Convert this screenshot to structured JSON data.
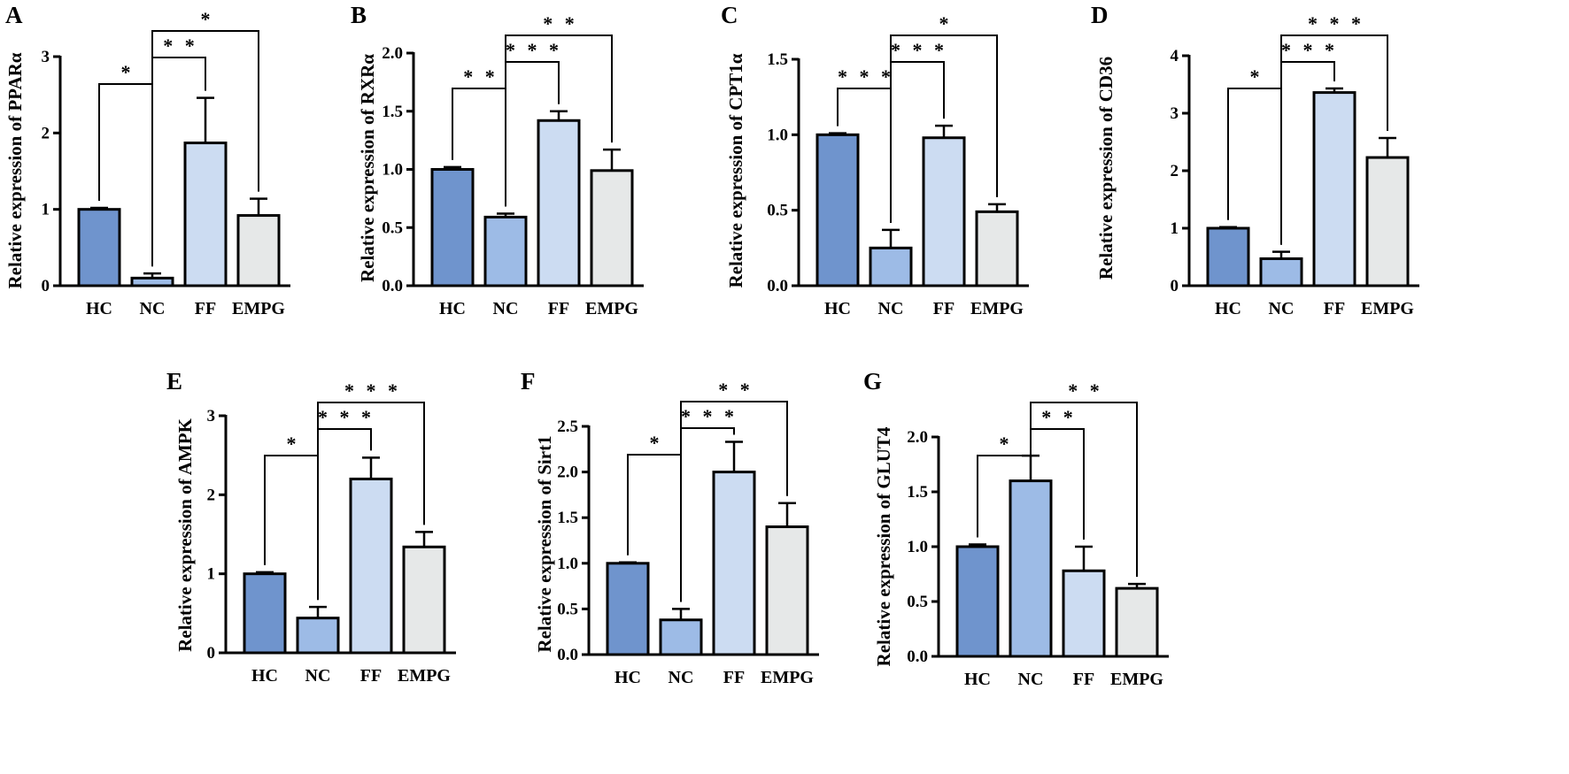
{
  "chart_data": [
    {
      "type": "bar",
      "panel_label": "A",
      "categories": [
        "HC",
        "NC",
        "FF",
        "EMPG"
      ],
      "values": [
        1.0,
        0.1,
        1.87,
        0.92
      ],
      "errors": [
        0.02,
        0.06,
        0.59,
        0.22
      ],
      "colors": [
        "#6f94cd",
        "#9dbbe6",
        "#ccdcf2",
        "#e6e8e8"
      ],
      "ylabel": "Relative expression of PPARα",
      "ylim": [
        0,
        3
      ],
      "yticks": [
        0,
        1,
        2,
        3
      ],
      "ytick_labels": [
        "0",
        "1",
        "2",
        "3"
      ],
      "significance": [
        {
          "from": 0,
          "to": 1,
          "label": "*"
        },
        {
          "from": 1,
          "to": 2,
          "label": "* *"
        },
        {
          "from": 1,
          "to": 3,
          "label": "*"
        }
      ]
    },
    {
      "type": "bar",
      "panel_label": "B",
      "categories": [
        "HC",
        "NC",
        "FF",
        "EMPG"
      ],
      "values": [
        1.0,
        0.59,
        1.42,
        0.99
      ],
      "errors": [
        0.02,
        0.03,
        0.08,
        0.18
      ],
      "colors": [
        "#6f94cd",
        "#9dbbe6",
        "#ccdcf2",
        "#e6e8e8"
      ],
      "ylabel": "Relative expression of RXRα",
      "ylim": [
        0,
        2
      ],
      "yticks": [
        0,
        0.5,
        1,
        1.5,
        2
      ],
      "ytick_labels": [
        "0.0",
        "0.5",
        "1.0",
        "1.5",
        "2.0"
      ],
      "significance": [
        {
          "from": 0,
          "to": 1,
          "label": "* *"
        },
        {
          "from": 1,
          "to": 2,
          "label": "* * *"
        },
        {
          "from": 1,
          "to": 3,
          "label": "* *"
        }
      ]
    },
    {
      "type": "bar",
      "panel_label": "C",
      "categories": [
        "HC",
        "NC",
        "FF",
        "EMPG"
      ],
      "values": [
        1.0,
        0.25,
        0.98,
        0.49
      ],
      "errors": [
        0.01,
        0.12,
        0.08,
        0.05
      ],
      "colors": [
        "#6f94cd",
        "#9dbbe6",
        "#ccdcf2",
        "#e6e8e8"
      ],
      "ylabel": "Relative expression of CPT1α",
      "ylim": [
        0,
        1.5
      ],
      "yticks": [
        0,
        0.5,
        1,
        1.5
      ],
      "ytick_labels": [
        "0.0",
        "0.5",
        "1.0",
        "1.5"
      ],
      "significance": [
        {
          "from": 0,
          "to": 1,
          "label": "* * *"
        },
        {
          "from": 1,
          "to": 2,
          "label": "* * *"
        },
        {
          "from": 1,
          "to": 3,
          "label": "*"
        }
      ]
    },
    {
      "type": "bar",
      "panel_label": "D",
      "categories": [
        "HC",
        "NC",
        "FF",
        "EMPG"
      ],
      "values": [
        1.0,
        0.47,
        3.36,
        2.23
      ],
      "errors": [
        0.02,
        0.12,
        0.07,
        0.34
      ],
      "colors": [
        "#6f94cd",
        "#9dbbe6",
        "#ccdcf2",
        "#e6e8e8"
      ],
      "ylabel": "Relative expression of CD36",
      "ylim": [
        0,
        4
      ],
      "yticks": [
        0,
        1,
        2,
        3,
        4
      ],
      "ytick_labels": [
        "0",
        "1",
        "2",
        "3",
        "4"
      ],
      "significance": [
        {
          "from": 0,
          "to": 1,
          "label": "*"
        },
        {
          "from": 1,
          "to": 2,
          "label": "* * *"
        },
        {
          "from": 1,
          "to": 3,
          "label": "* * *"
        }
      ]
    },
    {
      "type": "bar",
      "panel_label": "E",
      "categories": [
        "HC",
        "NC",
        "FF",
        "EMPG"
      ],
      "values": [
        1.0,
        0.44,
        2.2,
        1.34
      ],
      "errors": [
        0.02,
        0.14,
        0.27,
        0.19
      ],
      "colors": [
        "#6f94cd",
        "#9dbbe6",
        "#ccdcf2",
        "#e6e8e8"
      ],
      "ylabel": "Relative expression of AMPK",
      "ylim": [
        0,
        3
      ],
      "yticks": [
        0,
        1,
        2,
        3
      ],
      "ytick_labels": [
        "0",
        "1",
        "2",
        "3"
      ],
      "significance": [
        {
          "from": 0,
          "to": 1,
          "label": "*"
        },
        {
          "from": 1,
          "to": 2,
          "label": "* * *"
        },
        {
          "from": 1,
          "to": 3,
          "label": "* * *"
        }
      ]
    },
    {
      "type": "bar",
      "panel_label": "F",
      "categories": [
        "HC",
        "NC",
        "FF",
        "EMPG"
      ],
      "values": [
        1.0,
        0.38,
        2.0,
        1.4
      ],
      "errors": [
        0.01,
        0.12,
        0.33,
        0.26
      ],
      "colors": [
        "#6f94cd",
        "#9dbbe6",
        "#ccdcf2",
        "#e6e8e8"
      ],
      "ylabel": "Relative expression of Sirt1",
      "ylim": [
        0,
        2.5
      ],
      "yticks": [
        0,
        0.5,
        1,
        1.5,
        2,
        2.5
      ],
      "ytick_labels": [
        "0.0",
        "0.5",
        "1.0",
        "1.5",
        "2.0",
        "2.5"
      ],
      "significance": [
        {
          "from": 0,
          "to": 1,
          "label": "*"
        },
        {
          "from": 1,
          "to": 2,
          "label": "* * *"
        },
        {
          "from": 1,
          "to": 3,
          "label": "* *"
        }
      ]
    },
    {
      "type": "bar",
      "panel_label": "G",
      "categories": [
        "HC",
        "NC",
        "FF",
        "EMPG"
      ],
      "values": [
        1.0,
        1.6,
        0.78,
        0.62
      ],
      "errors": [
        0.02,
        0.23,
        0.22,
        0.04
      ],
      "colors": [
        "#6f94cd",
        "#9dbbe6",
        "#ccdcf2",
        "#e6e8e8"
      ],
      "ylabel": "Relative expression of GLUT4",
      "ylim": [
        0,
        2
      ],
      "yticks": [
        0,
        0.5,
        1,
        1.5,
        2
      ],
      "ytick_labels": [
        "0.0",
        "0.5",
        "1.0",
        "1.5",
        "2.0"
      ],
      "significance": [
        {
          "from": 0,
          "to": 1,
          "label": "*"
        },
        {
          "from": 1,
          "to": 2,
          "label": "* *"
        },
        {
          "from": 1,
          "to": 3,
          "label": "* *"
        }
      ]
    }
  ]
}
